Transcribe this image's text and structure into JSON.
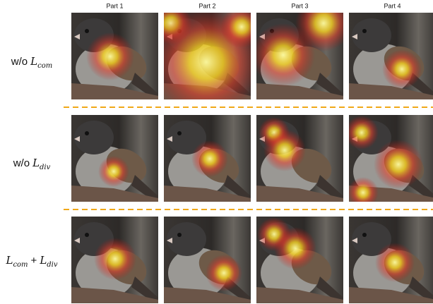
{
  "columns": [
    "Part 1",
    "Part 2",
    "Part 3",
    "Part 4"
  ],
  "rows": [
    {
      "label": [
        {
          "text": "w/o"
        },
        {
          "text": "L",
          "sub": "com"
        }
      ]
    },
    {
      "label": [
        {
          "text": "w/o"
        },
        {
          "text": "L",
          "sub": "div"
        }
      ]
    },
    {
      "label": [
        {
          "text": "L",
          "sub": "com"
        },
        {
          "text": "+"
        },
        {
          "text": "L",
          "sub": "div"
        }
      ]
    }
  ]
}
